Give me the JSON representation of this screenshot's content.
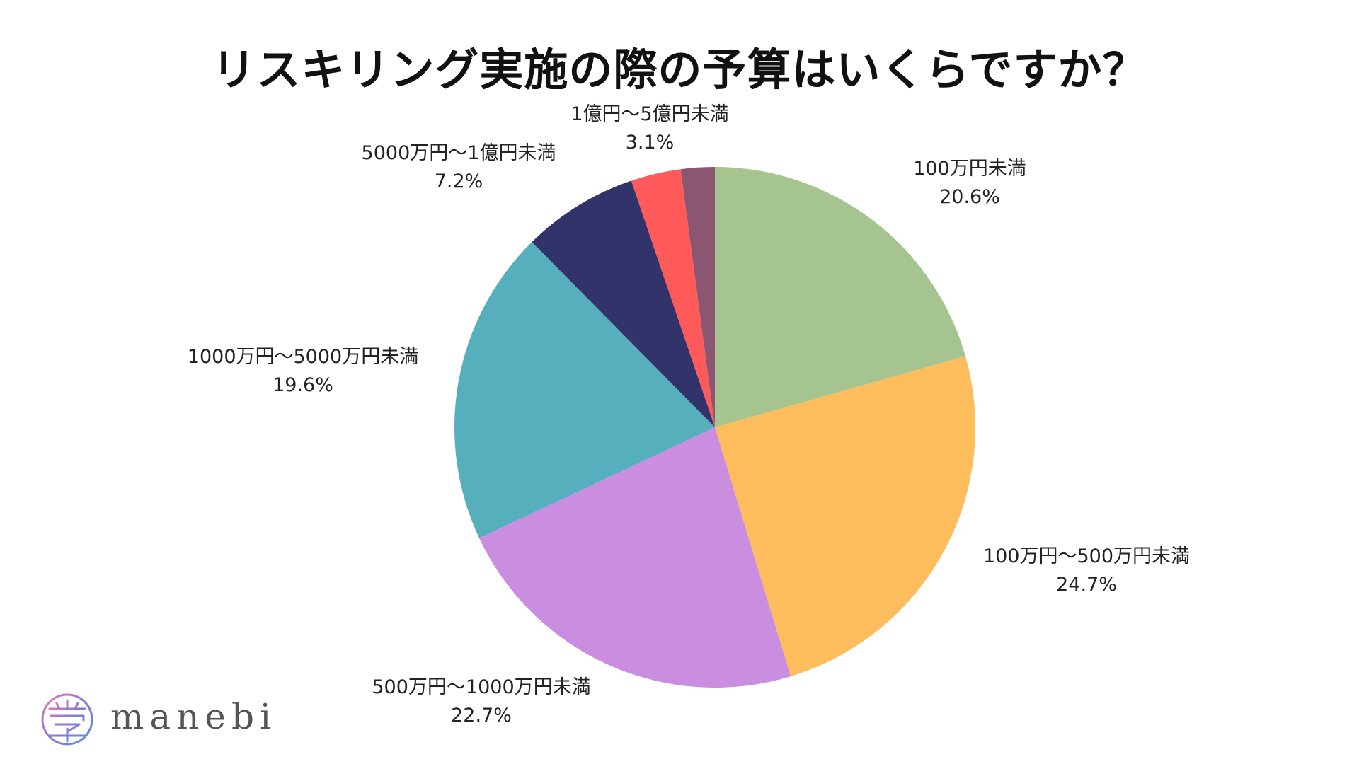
{
  "chart_data": {
    "type": "pie",
    "title": "リスキリング実施の際の予算はいくらですか？",
    "start": "top",
    "direction": "clockwise",
    "slices": [
      {
        "label": "100万円未満",
        "value": 20.6,
        "value_text": "20.6%",
        "color": "#A6C48F"
      },
      {
        "label": "100万円～500万円未満",
        "value": 24.7,
        "value_text": "24.7%",
        "color": "#FDBD5C"
      },
      {
        "label": "500万円～1000万円未満",
        "value": 22.7,
        "value_text": "22.7%",
        "color": "#CB8DE0"
      },
      {
        "label": "1000万円～5000万円未満",
        "value": 19.6,
        "value_text": "19.6%",
        "color": "#55AFBD"
      },
      {
        "label": "5000万円～1億円未満",
        "value": 7.2,
        "value_text": "7.2%",
        "color": "#31336A"
      },
      {
        "label": "1億円～5億円未満",
        "value": 3.1,
        "value_text": "3.1%",
        "color": "#FF5A5A"
      },
      {
        "label": "",
        "value": 2.1,
        "value_text": "",
        "color": "#8A5672"
      }
    ]
  },
  "logo": {
    "text": "manebi",
    "icon": "manebi-logo-mark-icon",
    "gradient": [
      "#E07BB4",
      "#8B77D8",
      "#5B8FE0"
    ]
  }
}
